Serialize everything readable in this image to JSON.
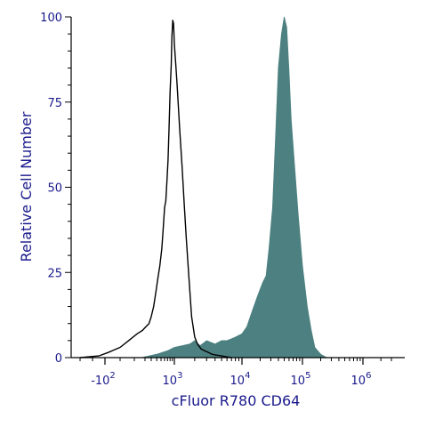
{
  "chart_data": {
    "type": "area",
    "xlabel": "cFluor R780 CD64",
    "ylabel": "Relative Cell Number",
    "x_scale": "biexponential",
    "ylim": [
      0,
      100
    ],
    "grid": false,
    "colors": {
      "label": "#1a1a8c",
      "control_line": "#000000",
      "stained_fill": "#4d8080",
      "axis": "#000000"
    },
    "y_ticks": [
      {
        "value": 0,
        "label": "0"
      },
      {
        "value": 25,
        "label": "25"
      },
      {
        "value": 50,
        "label": "50"
      },
      {
        "value": 75,
        "label": "75"
      },
      {
        "value": 100,
        "label": "100"
      }
    ],
    "x_ticks": [
      {
        "value": -100,
        "base": "-10",
        "exp": "2"
      },
      {
        "value": 1000,
        "base": "10",
        "exp": "3"
      },
      {
        "value": 10000,
        "base": "10",
        "exp": "4"
      },
      {
        "value": 100000,
        "base": "10",
        "exp": "5"
      },
      {
        "value": 1000000,
        "base": "10",
        "exp": "6"
      }
    ],
    "series": [
      {
        "style": "line",
        "x": [
          -300,
          -150,
          -80,
          0,
          60,
          120,
          170,
          210,
          260,
          300,
          340,
          380,
          420,
          470,
          520,
          560,
          600,
          640,
          680,
          720,
          760,
          800,
          850,
          880,
          920,
          960,
          1000,
          1050,
          1100,
          1200,
          1300,
          1400,
          1500,
          1650,
          1800,
          2000,
          2200,
          2500,
          2800,
          3200,
          3600,
          4000,
          5000,
          6000,
          7000
        ],
        "y": [
          0,
          0.5,
          1.5,
          3,
          5,
          7,
          8,
          9,
          10,
          12,
          15,
          19,
          23,
          27,
          32,
          38,
          44,
          46,
          52,
          58,
          68,
          78,
          86,
          94,
          99,
          98,
          92,
          86,
          80,
          67,
          56,
          45,
          35,
          23,
          12,
          6,
          4,
          2.5,
          2,
          1.5,
          1,
          0.8,
          0.5,
          0.2,
          0
        ]
      },
      {
        "style": "filled",
        "x": [
          160,
          400,
          700,
          1000,
          1300,
          1700,
          2000,
          2400,
          3000,
          4000,
          5000,
          6000,
          7000,
          8000,
          10000,
          12000,
          15000,
          18000,
          22000,
          25000,
          28000,
          32000,
          36000,
          40000,
          45000,
          50000,
          55000,
          60000,
          65000,
          75000,
          85000,
          100000,
          120000,
          140000,
          160000,
          200000,
          250000
        ],
        "y": [
          0,
          1,
          2,
          3,
          3.5,
          4,
          5,
          3.5,
          5,
          4,
          5,
          5,
          5.5,
          6,
          7,
          9,
          14,
          18,
          22,
          24,
          32,
          44,
          65,
          85,
          95,
          100,
          97,
          84,
          70,
          55,
          42,
          27,
          15,
          8,
          3,
          1,
          0
        ]
      }
    ]
  }
}
